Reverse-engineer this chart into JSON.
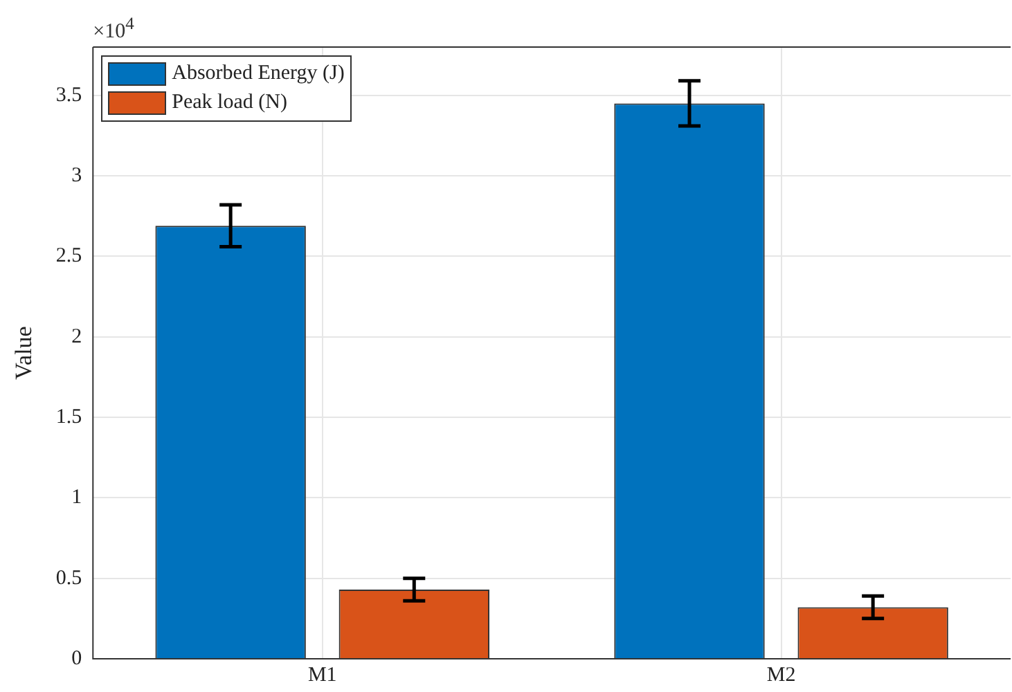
{
  "chart_data": {
    "type": "bar",
    "ylabel": "Value",
    "categories": [
      "M1",
      "M2"
    ],
    "series": [
      {
        "name": "Absorbed Energy (J)",
        "color": "#0072bd",
        "values": [
          2.69,
          3.45
        ],
        "errors": [
          0.13,
          0.14
        ]
      },
      {
        "name": "Peak load (N)",
        "color": "#d95319",
        "values": [
          0.43,
          0.32
        ],
        "errors": [
          0.07,
          0.07
        ]
      }
    ],
    "ylim": [
      0,
      3.8
    ],
    "yticks": [
      0,
      0.5,
      1,
      1.5,
      2,
      2.5,
      3,
      3.5
    ],
    "annotations": [
      "×10$^{4}$"
    ],
    "grid": true,
    "legend": "top left"
  }
}
